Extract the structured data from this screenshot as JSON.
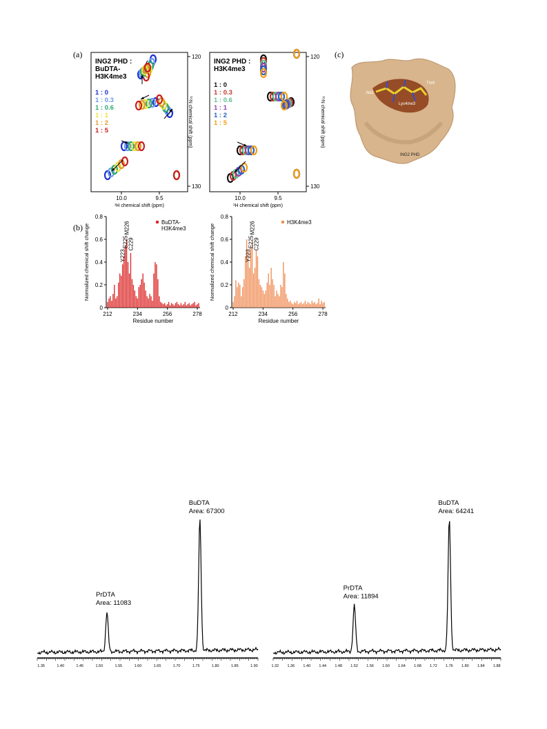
{
  "panel_labels": {
    "a": "(a)",
    "b": "(b)",
    "c": "(c)"
  },
  "nmr_left": {
    "title_lines": [
      "ING2 PHD :",
      "BuDTA-",
      "H3K4me3"
    ],
    "legend": [
      {
        "label": "1 : 0",
        "color": "#1b2fd6"
      },
      {
        "label": "1 : 0.3",
        "color": "#6a9ae8"
      },
      {
        "label": "1 : 0.6",
        "color": "#2fa86a"
      },
      {
        "label": "1 : 1",
        "color": "#e8e23a"
      },
      {
        "label": "1 : 2",
        "color": "#e09a2a"
      },
      {
        "label": "1 : 5",
        "color": "#c81e1e"
      }
    ],
    "x_ticks": [
      "10.0",
      "9.5"
    ],
    "x_label": "¹H chemical shift (ppm)",
    "y_ticks": [
      "120",
      "130"
    ],
    "y_label": "¹⁵N chemical shift (ppm)"
  },
  "nmr_right": {
    "title_lines": [
      "ING2 PHD :",
      "H3K4me3"
    ],
    "legend": [
      {
        "label": "1 : 0",
        "color": "#111111"
      },
      {
        "label": "1 : 0.3",
        "color": "#c0392b"
      },
      {
        "label": "1 : 0.6",
        "color": "#5fbf8f"
      },
      {
        "label": "1 : 1",
        "color": "#8e44ad"
      },
      {
        "label": "1 : 2",
        "color": "#2060c0"
      },
      {
        "label": "1 : 5",
        "color": "#f39c12"
      }
    ],
    "x_ticks": [
      "10.0",
      "9.5"
    ],
    "x_label": "¹H chemical shift (ppm)",
    "y_ticks": [
      "120",
      "130"
    ],
    "y_label": "¹⁵N chemical shift (ppm)"
  },
  "structure": {
    "labels": [
      "Thr6",
      "Ala1",
      "Lys4me3",
      "ING2 PHD"
    ],
    "surface_color": "#d8b58c",
    "patch_color": "#8b3a14"
  },
  "chart_data": [
    {
      "type": "bar",
      "series": [
        {
          "name": "BuDTA-\nH3K4me3",
          "color": "#dc2a2a",
          "x": [
            212,
            213,
            214,
            215,
            216,
            217,
            218,
            219,
            220,
            221,
            222,
            223,
            224,
            225,
            226,
            227,
            228,
            229,
            230,
            231,
            232,
            233,
            234,
            235,
            236,
            237,
            238,
            239,
            240,
            241,
            242,
            243,
            244,
            245,
            246,
            247,
            248,
            249,
            250,
            251,
            252,
            253,
            254,
            255,
            256,
            257,
            258,
            259,
            260,
            261,
            262,
            263,
            264,
            265,
            266,
            267,
            268,
            269,
            270,
            271,
            272,
            273,
            274,
            275,
            276,
            277,
            278,
            279
          ],
          "values": [
            0.05,
            0.08,
            0.1,
            0.06,
            0.12,
            0.2,
            0.08,
            0.1,
            0.22,
            0.3,
            0.28,
            0.38,
            0.45,
            0.55,
            0.6,
            0.4,
            0.3,
            0.48,
            0.25,
            0.2,
            0.15,
            0.1,
            0.08,
            0.18,
            0.2,
            0.25,
            0.3,
            0.22,
            0.15,
            0.1,
            0.08,
            0.12,
            0.1,
            0.06,
            0.3,
            0.4,
            0.38,
            0.25,
            0.1,
            0.05,
            0.04,
            0.03,
            0.04,
            0.02,
            0.03,
            0.05,
            0.02,
            0.04,
            0.03,
            0.02,
            0.04,
            0.05,
            0.03,
            0.02,
            0.04,
            0.02,
            0.03,
            0.05,
            0.02,
            0.03,
            0.04,
            0.02,
            0.03,
            0.04,
            0.05,
            0.02,
            0.03,
            0.04
          ]
        }
      ],
      "annotations": [
        "Y223",
        "E225",
        "M226",
        "C229"
      ],
      "xlabel": "Residue number",
      "ylabel": "Normalized chemical shift change",
      "x_ticks": [
        212,
        234,
        256,
        278
      ],
      "y_ticks": [
        "0",
        "0.2",
        "0.4",
        "0.6",
        "0.8"
      ],
      "xlim": [
        211,
        280
      ],
      "ylim": [
        0,
        0.8
      ]
    },
    {
      "type": "bar",
      "series": [
        {
          "name": "H3K4me3",
          "color": "#f0905a",
          "x": [
            212,
            213,
            214,
            215,
            216,
            217,
            218,
            219,
            220,
            221,
            222,
            223,
            224,
            225,
            226,
            227,
            228,
            229,
            230,
            231,
            232,
            233,
            234,
            235,
            236,
            237,
            238,
            239,
            240,
            241,
            242,
            243,
            244,
            245,
            246,
            247,
            248,
            249,
            250,
            251,
            252,
            253,
            254,
            255,
            256,
            257,
            258,
            259,
            260,
            261,
            262,
            263,
            264,
            265,
            266,
            267,
            268,
            269,
            270,
            271,
            272,
            273,
            274,
            275,
            276,
            277,
            278,
            279
          ],
          "values": [
            0.05,
            0.1,
            0.24,
            0.18,
            0.22,
            0.2,
            0.1,
            0.18,
            0.25,
            0.45,
            0.6,
            0.5,
            0.35,
            0.52,
            0.58,
            0.3,
            0.35,
            0.5,
            0.45,
            0.25,
            0.2,
            0.18,
            0.15,
            0.12,
            0.15,
            0.22,
            0.3,
            0.2,
            0.35,
            0.25,
            0.2,
            0.1,
            0.15,
            0.12,
            0.1,
            0.2,
            0.18,
            0.4,
            0.3,
            0.12,
            0.08,
            0.05,
            0.06,
            0.04,
            0.03,
            0.05,
            0.04,
            0.06,
            0.03,
            0.04,
            0.05,
            0.03,
            0.04,
            0.06,
            0.03,
            0.05,
            0.04,
            0.03,
            0.06,
            0.04,
            0.05,
            0.03,
            0.04,
            0.08,
            0.03,
            0.06,
            0.04,
            0.05
          ]
        }
      ],
      "annotations": [
        "Y223",
        "E225",
        "M226",
        "C229"
      ],
      "xlabel": "Residue number",
      "ylabel": "Normalized chemical shift change",
      "x_ticks": [
        212,
        234,
        256,
        278
      ],
      "y_ticks": [
        "0",
        "0.2",
        "0.4",
        "0.6",
        "0.8"
      ],
      "xlim": [
        211,
        280
      ],
      "ylim": [
        0,
        0.8
      ]
    },
    {
      "type": "line",
      "x_ticks": [
        "1.35",
        "1.40",
        "1.45",
        "1.50",
        "1.55",
        "1.60",
        "1.65",
        "1.70",
        "1.75",
        "1.80",
        "1.85",
        "1.90"
      ],
      "xlim": [
        1.34,
        1.91
      ],
      "peaks": [
        {
          "label": "PrDTA",
          "area_text": "Area: 11083",
          "x": 1.52,
          "height": 0.3
        },
        {
          "label": "BuDTA",
          "area_text": "Area: 67300",
          "x": 1.76,
          "height": 1.0
        }
      ]
    },
    {
      "type": "line",
      "x_ticks": [
        "1.32",
        "1.36",
        "1.40",
        "1.44",
        "1.48",
        "1.52",
        "1.56",
        "1.60",
        "1.64",
        "1.68",
        "1.72",
        "1.76",
        "1.80",
        "1.84",
        "1.88"
      ],
      "xlim": [
        1.315,
        1.89
      ],
      "peaks": [
        {
          "label": "PrDTA",
          "area_text": "Area: 11894",
          "x": 1.52,
          "height": 0.35
        },
        {
          "label": "BuDTA",
          "area_text": "Area: 64241",
          "x": 1.76,
          "height": 1.0
        }
      ]
    }
  ]
}
